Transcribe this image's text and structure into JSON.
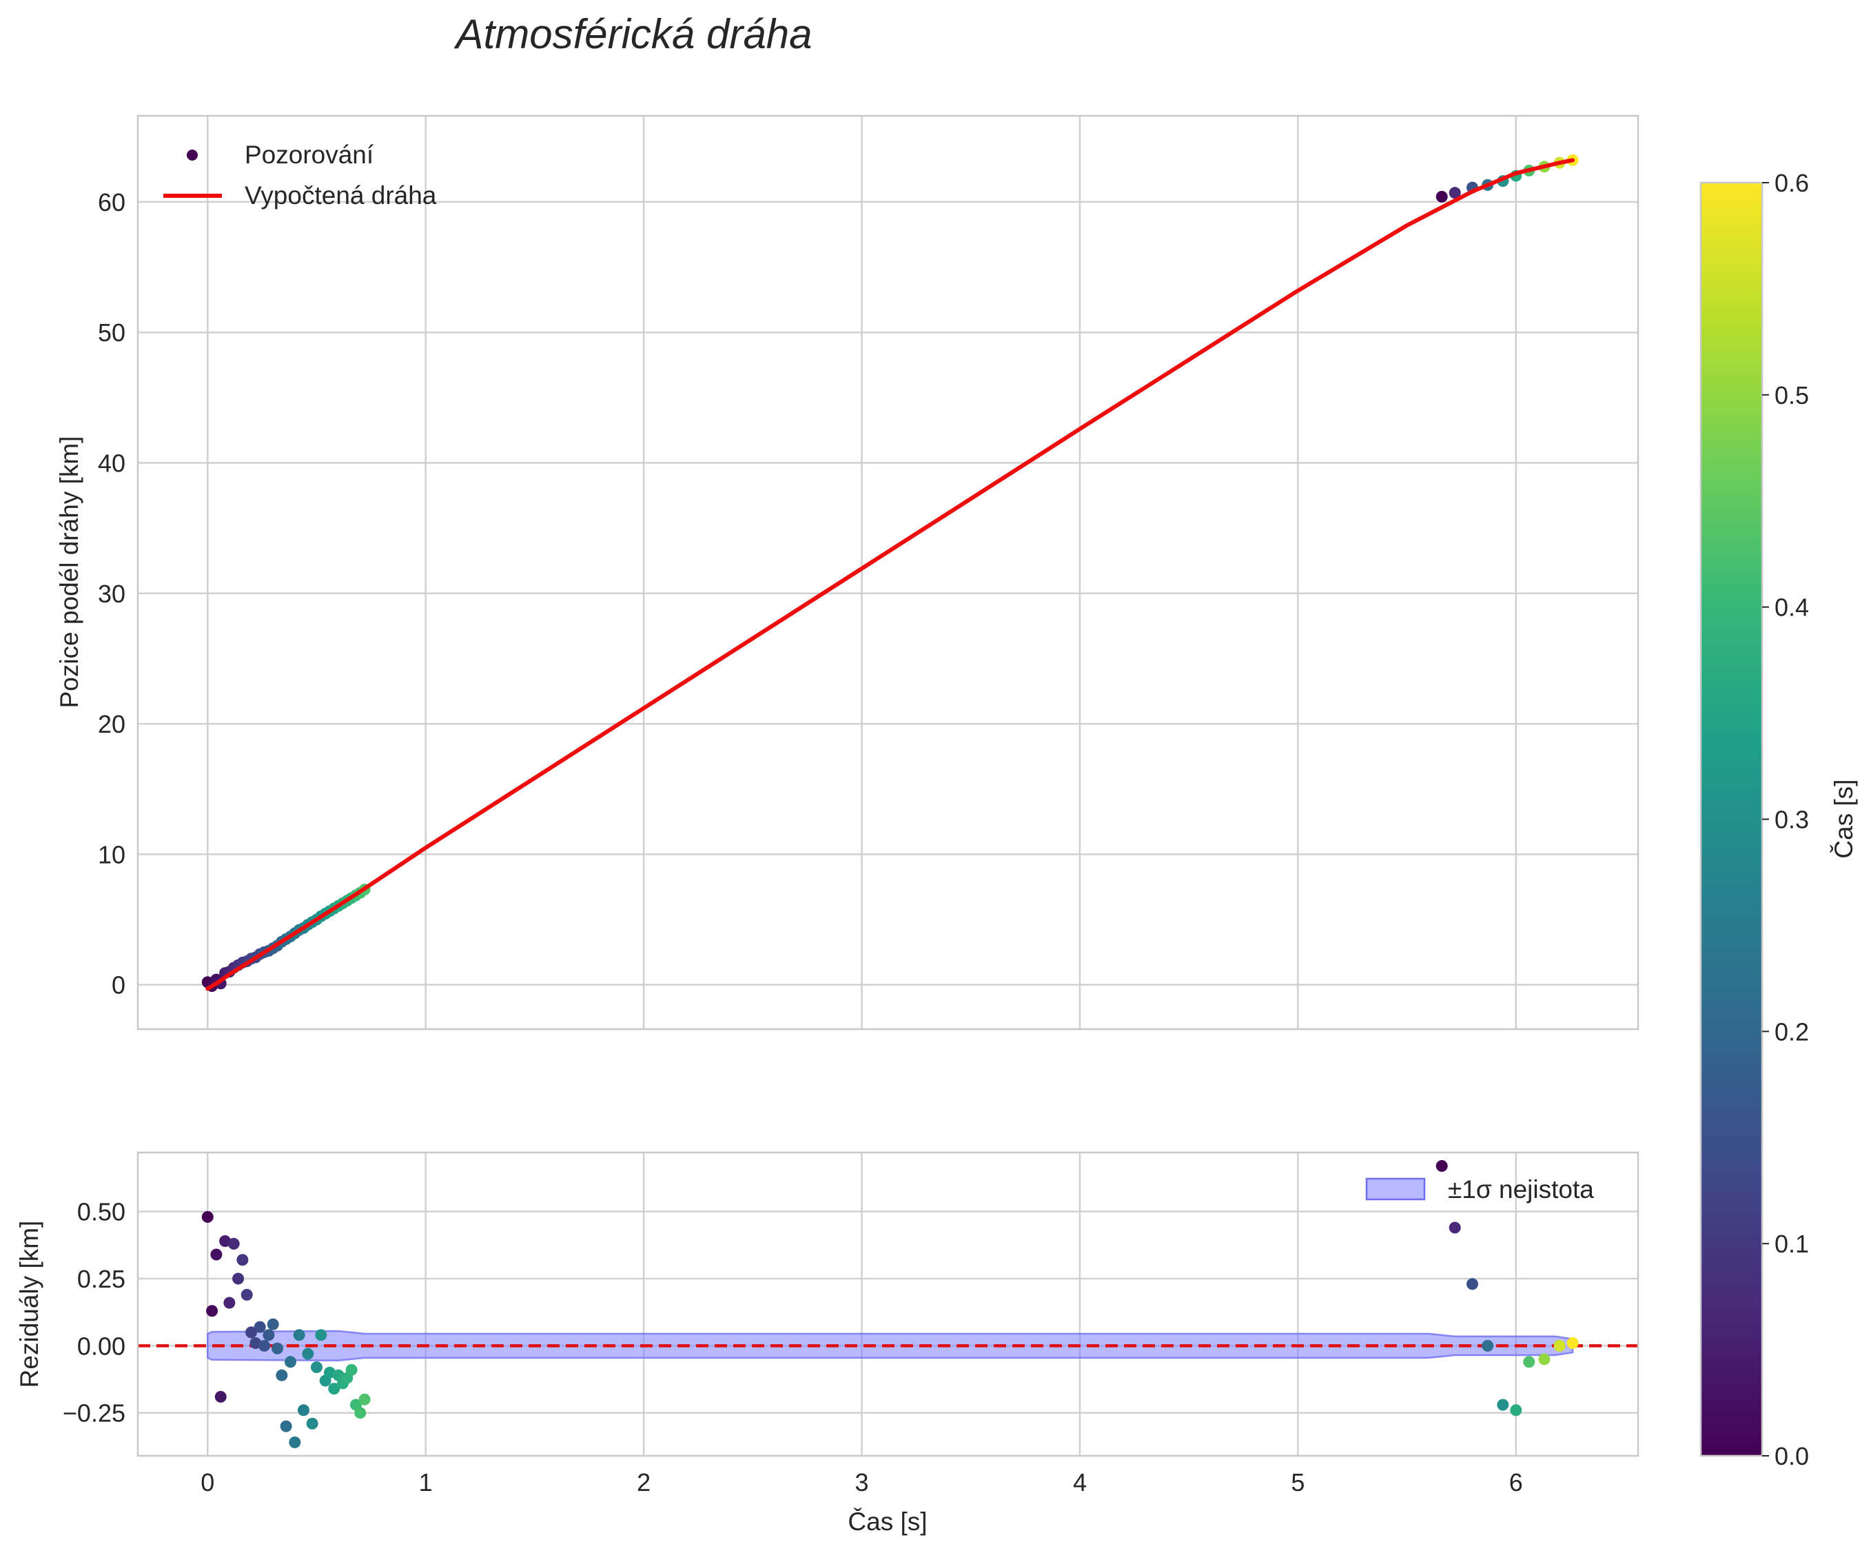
{
  "chart_data": {
    "title": "Atmosférická dráha",
    "colors": {
      "fit_line": "#ee0d0d",
      "zero_line": "#dd1111",
      "band_fill": "#8080ff",
      "band_edge": "#6e6ef0",
      "grid": "#d0d0d0",
      "frame": "#c8c8c8",
      "text": "#262626"
    },
    "colormap": [
      "#440154",
      "#482878",
      "#3e4989",
      "#31688e",
      "#26828e",
      "#1f9e89",
      "#35b779",
      "#6ece58",
      "#b5de2b",
      "#fde725"
    ],
    "panels": [
      {
        "id": "top",
        "type": "scatter",
        "ylabel": "Pozice podél dráhy [km]",
        "xlim": [
          -0.32,
          6.56
        ],
        "ylim": [
          -3.4,
          66.6
        ],
        "xticks": [
          0,
          1,
          2,
          3,
          4,
          5,
          6
        ],
        "yticks": [
          0,
          10,
          20,
          30,
          40,
          50,
          60
        ],
        "ytick_labels": [
          "0",
          "10",
          "20",
          "30",
          "40",
          "50",
          "60"
        ],
        "legend": {
          "position": "top-left",
          "entries": [
            {
              "label": "Pozorování",
              "kind": "marker"
            },
            {
              "label": "Vypočtená dráha",
              "kind": "line"
            }
          ]
        },
        "fit_line": {
          "x": [
            0,
            0.05,
            0.1,
            0.2,
            0.3,
            0.5,
            0.7,
            1.0,
            2.0,
            3.0,
            4.0,
            5.0,
            5.5,
            5.8,
            6.0,
            6.2,
            6.26
          ],
          "y": [
            -0.3,
            0.2,
            0.8,
            1.85,
            2.9,
            5.0,
            7.15,
            10.5,
            21.2,
            31.9,
            42.6,
            53.2,
            58.2,
            60.8,
            62.2,
            63.0,
            63.2
          ]
        },
        "series": {
          "x": [
            0.0,
            0.02,
            0.04,
            0.06,
            0.08,
            0.1,
            0.12,
            0.14,
            0.16,
            0.18,
            0.2,
            0.22,
            0.24,
            0.26,
            0.28,
            0.3,
            0.32,
            0.34,
            0.36,
            0.38,
            0.4,
            0.42,
            0.44,
            0.46,
            0.48,
            0.5,
            0.52,
            0.54,
            0.56,
            0.58,
            0.6,
            0.62,
            0.64,
            0.66,
            0.68,
            0.7,
            0.72,
            5.66,
            5.72,
            5.8,
            5.87,
            5.94,
            6.0,
            6.06,
            6.13,
            6.2,
            6.26
          ],
          "y": [
            0.2,
            -0.1,
            0.4,
            0.1,
            0.9,
            1.0,
            1.3,
            1.5,
            1.7,
            1.8,
            2.0,
            2.1,
            2.35,
            2.5,
            2.6,
            2.8,
            3.0,
            3.3,
            3.5,
            3.7,
            3.95,
            4.2,
            4.35,
            4.6,
            4.8,
            5.0,
            5.25,
            5.45,
            5.65,
            5.85,
            6.05,
            6.25,
            6.45,
            6.65,
            6.85,
            7.05,
            7.3,
            60.4,
            60.7,
            61.1,
            61.3,
            61.6,
            62.0,
            62.4,
            62.7,
            63.0,
            63.2
          ],
          "color_value": [
            0.0,
            0.012,
            0.024,
            0.036,
            0.048,
            0.06,
            0.072,
            0.084,
            0.096,
            0.108,
            0.12,
            0.132,
            0.144,
            0.156,
            0.168,
            0.18,
            0.192,
            0.204,
            0.216,
            0.228,
            0.24,
            0.252,
            0.264,
            0.276,
            0.288,
            0.3,
            0.312,
            0.324,
            0.336,
            0.348,
            0.36,
            0.372,
            0.384,
            0.396,
            0.408,
            0.42,
            0.432,
            0.0,
            0.07,
            0.15,
            0.22,
            0.3,
            0.37,
            0.43,
            0.5,
            0.56,
            0.6
          ]
        }
      },
      {
        "id": "bottom",
        "type": "scatter",
        "xlabel": "Čas [s]",
        "ylabel": "Reziduály [km]",
        "xlim": [
          -0.32,
          6.56
        ],
        "ylim": [
          -0.41,
          0.72
        ],
        "xticks": [
          0,
          1,
          2,
          3,
          4,
          5,
          6
        ],
        "xtick_labels": [
          "0",
          "1",
          "2",
          "3",
          "4",
          "5",
          "6"
        ],
        "yticks": [
          -0.25,
          0.0,
          0.25,
          0.5
        ],
        "ytick_labels": [
          "−0.25",
          "0.00",
          "0.25",
          "0.50"
        ],
        "legend": {
          "position": "top-right",
          "entries": [
            {
              "label": "±1σ nejistota",
              "kind": "patch"
            }
          ]
        },
        "zero_line": 0.0,
        "uncertainty_band": {
          "x": [
            0.0,
            0.02,
            0.6,
            0.72,
            5.6,
            5.72,
            6.18,
            6.26
          ],
          "half_width": [
            0.045,
            0.052,
            0.055,
            0.045,
            0.045,
            0.035,
            0.035,
            0.025
          ]
        },
        "series": {
          "x": [
            0.0,
            0.02,
            0.04,
            0.06,
            0.08,
            0.1,
            0.12,
            0.14,
            0.16,
            0.18,
            0.2,
            0.22,
            0.24,
            0.26,
            0.28,
            0.3,
            0.32,
            0.34,
            0.36,
            0.38,
            0.4,
            0.42,
            0.44,
            0.46,
            0.48,
            0.5,
            0.52,
            0.54,
            0.56,
            0.58,
            0.6,
            0.62,
            0.64,
            0.66,
            0.68,
            0.7,
            0.72,
            5.66,
            5.72,
            5.8,
            5.87,
            5.94,
            6.0,
            6.06,
            6.13,
            6.2,
            6.26
          ],
          "y": [
            0.48,
            0.13,
            0.34,
            -0.19,
            0.39,
            0.16,
            0.38,
            0.25,
            0.32,
            0.19,
            0.05,
            0.01,
            0.07,
            0.0,
            0.04,
            0.08,
            -0.01,
            -0.11,
            -0.3,
            -0.06,
            -0.36,
            0.04,
            -0.24,
            -0.03,
            -0.29,
            -0.08,
            0.04,
            -0.13,
            -0.1,
            -0.16,
            -0.11,
            -0.14,
            -0.12,
            -0.09,
            -0.22,
            -0.25,
            -0.2,
            0.67,
            0.44,
            0.23,
            0.0,
            -0.22,
            -0.24,
            -0.06,
            -0.05,
            0.0,
            0.01
          ],
          "color_value": [
            0.0,
            0.012,
            0.024,
            0.036,
            0.048,
            0.06,
            0.072,
            0.084,
            0.096,
            0.108,
            0.12,
            0.132,
            0.144,
            0.156,
            0.168,
            0.18,
            0.192,
            0.204,
            0.216,
            0.228,
            0.24,
            0.252,
            0.264,
            0.276,
            0.288,
            0.3,
            0.312,
            0.324,
            0.336,
            0.348,
            0.36,
            0.372,
            0.384,
            0.396,
            0.408,
            0.42,
            0.432,
            0.0,
            0.07,
            0.15,
            0.22,
            0.3,
            0.37,
            0.43,
            0.5,
            0.56,
            0.6
          ]
        }
      }
    ],
    "colorbar": {
      "label": "Čas [s]",
      "range": [
        0.0,
        0.6
      ],
      "ticks": [
        0.0,
        0.1,
        0.2,
        0.3,
        0.4,
        0.5,
        0.6
      ],
      "tick_labels": [
        "0.0",
        "0.1",
        "0.2",
        "0.3",
        "0.4",
        "0.5",
        "0.6"
      ]
    }
  }
}
